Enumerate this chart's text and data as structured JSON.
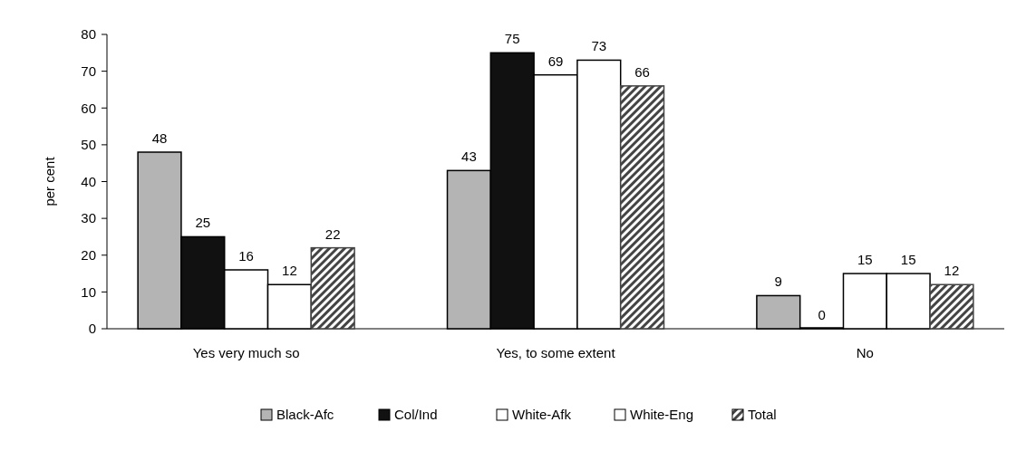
{
  "chart_data": {
    "type": "bar",
    "ylabel": "per cent",
    "categories": [
      "Yes very much so",
      "Yes, to some extent",
      "No"
    ],
    "series": [
      {
        "name": "Black-Afc",
        "color": "#b4b4b4",
        "values": [
          48,
          43,
          9
        ]
      },
      {
        "name": "Col/Ind",
        "color": "#111111",
        "values": [
          25,
          75,
          0
        ]
      },
      {
        "name": "White-Afk",
        "color": "#ffffff",
        "values": [
          16,
          69,
          15
        ]
      },
      {
        "name": "White-Eng",
        "color": "#ffffff",
        "values": [
          12,
          73,
          15
        ]
      },
      {
        "name": "Total",
        "color": "#444444",
        "values": [
          22,
          66,
          12
        ]
      }
    ],
    "ylim": [
      0,
      80
    ],
    "yticks": [
      0,
      10,
      20,
      30,
      40,
      50,
      60,
      70,
      80
    ],
    "data_labels": true,
    "grid": false,
    "legend": "bottom"
  }
}
